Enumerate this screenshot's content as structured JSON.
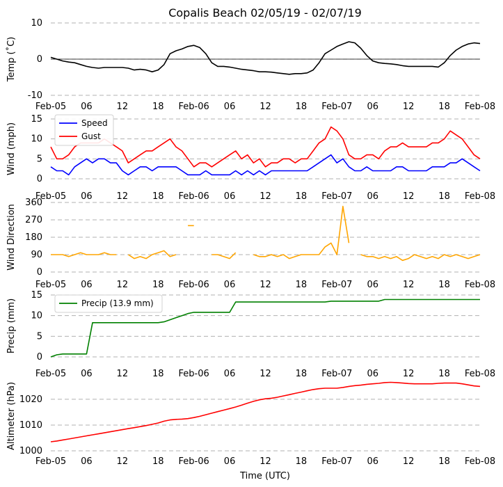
{
  "figure": {
    "title": "Copalis Beach 02/05/19 - 02/07/19",
    "xlabel": "Time (UTC)",
    "xticks": [
      "Feb-05",
      "06",
      "12",
      "18",
      "Feb-06",
      "06",
      "12",
      "18",
      "Feb-07",
      "06",
      "12",
      "18",
      "Feb-08"
    ]
  },
  "chart_data": [
    {
      "type": "line",
      "ylabel": "Temp ($^\\circ$C)",
      "ylabel_text": "Temp (˚C)",
      "ylim": [
        -10,
        10
      ],
      "yticks": [
        -10,
        0,
        10
      ],
      "grid": "horizontal dashed",
      "zero_line": true,
      "x_hours": [
        0,
        1,
        2,
        3,
        4,
        5,
        6,
        7,
        8,
        9,
        10,
        11,
        12,
        13,
        14,
        15,
        16,
        17,
        18,
        19,
        20,
        21,
        22,
        23,
        24,
        25,
        26,
        27,
        28,
        29,
        30,
        31,
        32,
        33,
        34,
        35,
        36,
        37,
        38,
        39,
        40,
        41,
        42,
        43,
        44,
        45,
        46,
        47,
        48,
        49,
        50,
        51,
        52,
        53,
        54,
        55,
        56,
        57,
        58,
        59,
        60,
        61,
        62,
        63,
        64,
        65,
        66,
        67,
        68,
        69,
        70,
        71,
        72
      ],
      "series": [
        {
          "name": "",
          "color": "#000000",
          "values": [
            0.5,
            0.0,
            -0.5,
            -0.8,
            -1.0,
            -1.5,
            -2.0,
            -2.3,
            -2.5,
            -2.3,
            -2.3,
            -2.3,
            -2.3,
            -2.5,
            -3.0,
            -2.8,
            -3.0,
            -3.5,
            -3.0,
            -1.5,
            1.5,
            2.3,
            2.8,
            3.5,
            3.8,
            3.2,
            1.5,
            -1.0,
            -2.0,
            -2.0,
            -2.2,
            -2.5,
            -2.8,
            -3.0,
            -3.2,
            -3.5,
            -3.5,
            -3.6,
            -3.8,
            -4.0,
            -4.2,
            -4.0,
            -4.0,
            -3.8,
            -3.0,
            -1.0,
            1.5,
            2.5,
            3.5,
            4.2,
            4.8,
            4.5,
            3.0,
            1.0,
            -0.5,
            -1.0,
            -1.2,
            -1.3,
            -1.5,
            -1.8,
            -2.0,
            -2.0,
            -2.0,
            -2.0,
            -2.0,
            -2.2,
            -1.0,
            1.0,
            2.5,
            3.5,
            4.2,
            4.5,
            4.3
          ]
        }
      ]
    },
    {
      "type": "line",
      "ylabel": "Wind (mph)",
      "ylim": [
        0,
        15
      ],
      "yticks": [
        0,
        5,
        10,
        15
      ],
      "grid": "horizontal dashed",
      "legend": "top-left",
      "x_hours": [
        0,
        1,
        2,
        3,
        4,
        5,
        6,
        7,
        8,
        9,
        10,
        11,
        12,
        13,
        14,
        15,
        16,
        17,
        18,
        19,
        20,
        21,
        22,
        23,
        24,
        25,
        26,
        27,
        28,
        29,
        30,
        31,
        32,
        33,
        34,
        35,
        36,
        37,
        38,
        39,
        40,
        41,
        42,
        43,
        44,
        45,
        46,
        47,
        48,
        49,
        50,
        51,
        52,
        53,
        54,
        55,
        56,
        57,
        58,
        59,
        60,
        61,
        62,
        63,
        64,
        65,
        66,
        67,
        68,
        69,
        70,
        71,
        72
      ],
      "series": [
        {
          "name": "Speed",
          "color": "#0000ff",
          "values": [
            3,
            2,
            2,
            1,
            3,
            4,
            5,
            4,
            5,
            5,
            4,
            4,
            2,
            1,
            2,
            3,
            3,
            2,
            3,
            3,
            3,
            3,
            2,
            1,
            1,
            1,
            2,
            1,
            1,
            1,
            1,
            2,
            1,
            2,
            1,
            2,
            1,
            2,
            2,
            2,
            2,
            2,
            2,
            2,
            3,
            4,
            5,
            6,
            4,
            5,
            3,
            2,
            2,
            3,
            2,
            2,
            2,
            2,
            3,
            3,
            2,
            2,
            2,
            2,
            3,
            3,
            3,
            4,
            4,
            5,
            4,
            3,
            2
          ]
        },
        {
          "name": "Gust",
          "color": "#ff0000",
          "values": [
            8,
            5,
            5,
            6,
            8,
            9,
            9,
            9,
            9,
            10,
            9,
            8,
            7,
            4,
            5,
            6,
            7,
            7,
            8,
            9,
            10,
            8,
            7,
            5,
            3,
            4,
            4,
            3,
            4,
            5,
            6,
            7,
            5,
            6,
            4,
            5,
            3,
            4,
            4,
            5,
            5,
            4,
            5,
            5,
            7,
            9,
            10,
            13,
            12,
            10,
            6,
            5,
            5,
            6,
            6,
            5,
            7,
            8,
            8,
            9,
            8,
            8,
            8,
            8,
            9,
            9,
            10,
            12,
            11,
            10,
            8,
            6,
            5
          ]
        }
      ]
    },
    {
      "type": "line",
      "ylabel": "Wind Direction",
      "ylim": [
        0,
        360
      ],
      "yticks": [
        0,
        90,
        180,
        270,
        360
      ],
      "grid": "horizontal dashed",
      "x_hours": [
        0,
        1,
        2,
        3,
        4,
        5,
        6,
        7,
        8,
        9,
        10,
        11,
        12,
        13,
        14,
        15,
        16,
        17,
        18,
        19,
        20,
        21,
        22,
        23,
        24,
        25,
        26,
        27,
        28,
        29,
        30,
        31,
        32,
        33,
        34,
        35,
        36,
        37,
        38,
        39,
        40,
        41,
        42,
        43,
        44,
        45,
        46,
        47,
        48,
        49,
        50,
        51,
        52,
        53,
        54,
        55,
        56,
        57,
        58,
        59,
        60,
        61,
        62,
        63,
        64,
        65,
        66,
        67,
        68,
        69,
        70,
        71,
        72
      ],
      "series": [
        {
          "name": "",
          "color": "#ffa500",
          "values": [
            90,
            90,
            90,
            80,
            90,
            100,
            90,
            90,
            90,
            100,
            90,
            90,
            null,
            90,
            70,
            80,
            70,
            90,
            100,
            110,
            80,
            90,
            null,
            240,
            240,
            null,
            null,
            90,
            90,
            80,
            70,
            100,
            null,
            null,
            90,
            80,
            80,
            90,
            80,
            90,
            70,
            80,
            90,
            90,
            90,
            90,
            130,
            150,
            90,
            340,
            150,
            null,
            90,
            80,
            80,
            70,
            80,
            70,
            80,
            60,
            70,
            90,
            80,
            70,
            80,
            70,
            90,
            80,
            90,
            80,
            70,
            80,
            90
          ]
        }
      ]
    },
    {
      "type": "line",
      "ylabel": "Precip (mm)",
      "ylim": [
        0,
        15
      ],
      "yticks": [
        0,
        5,
        10,
        15
      ],
      "grid": "horizontal dashed",
      "legend": "top-left",
      "x_hours": [
        0,
        1,
        2,
        3,
        4,
        5,
        6,
        7,
        8,
        9,
        10,
        11,
        12,
        13,
        14,
        15,
        16,
        17,
        18,
        19,
        20,
        21,
        22,
        23,
        24,
        25,
        26,
        27,
        28,
        29,
        30,
        31,
        32,
        33,
        34,
        35,
        36,
        37,
        38,
        39,
        40,
        41,
        42,
        43,
        44,
        45,
        46,
        47,
        48,
        49,
        50,
        51,
        52,
        53,
        54,
        55,
        56,
        57,
        58,
        59,
        60,
        61,
        62,
        63,
        64,
        65,
        66,
        67,
        68,
        69,
        70,
        71,
        72
      ],
      "series": [
        {
          "name": "Precip (13.9 mm)",
          "color": "#008000",
          "values": [
            0.0,
            0.5,
            0.7,
            0.7,
            0.7,
            0.7,
            0.7,
            8.3,
            8.3,
            8.3,
            8.3,
            8.3,
            8.3,
            8.3,
            8.3,
            8.3,
            8.3,
            8.3,
            8.3,
            8.5,
            9.0,
            9.5,
            10.0,
            10.5,
            10.8,
            10.8,
            10.8,
            10.8,
            10.8,
            10.8,
            10.8,
            13.3,
            13.3,
            13.3,
            13.3,
            13.3,
            13.3,
            13.3,
            13.3,
            13.3,
            13.3,
            13.3,
            13.3,
            13.3,
            13.3,
            13.3,
            13.3,
            13.5,
            13.5,
            13.5,
            13.5,
            13.5,
            13.5,
            13.5,
            13.5,
            13.5,
            13.9,
            13.9,
            13.9,
            13.9,
            13.9,
            13.9,
            13.9,
            13.9,
            13.9,
            13.9,
            13.9,
            13.9,
            13.9,
            13.9,
            13.9,
            13.9,
            13.9
          ]
        }
      ]
    },
    {
      "type": "line",
      "ylabel": "Altimeter (hPa)",
      "ylim": [
        1000,
        1027
      ],
      "yticks": [
        1000,
        1010,
        1020
      ],
      "grid": "horizontal dashed",
      "x_hours": [
        0,
        1,
        2,
        3,
        4,
        5,
        6,
        7,
        8,
        9,
        10,
        11,
        12,
        13,
        14,
        15,
        16,
        17,
        18,
        19,
        20,
        21,
        22,
        23,
        24,
        25,
        26,
        27,
        28,
        29,
        30,
        31,
        32,
        33,
        34,
        35,
        36,
        37,
        38,
        39,
        40,
        41,
        42,
        43,
        44,
        45,
        46,
        47,
        48,
        49,
        50,
        51,
        52,
        53,
        54,
        55,
        56,
        57,
        58,
        59,
        60,
        61,
        62,
        63,
        64,
        65,
        66,
        67,
        68,
        69,
        70,
        71,
        72
      ],
      "series": [
        {
          "name": "",
          "color": "#ff0000",
          "values": [
            1003.5,
            1003.8,
            1004.2,
            1004.6,
            1005.0,
            1005.4,
            1005.8,
            1006.2,
            1006.6,
            1007.0,
            1007.4,
            1007.8,
            1008.2,
            1008.6,
            1009.0,
            1009.4,
            1009.8,
            1010.3,
            1010.8,
            1011.5,
            1012.0,
            1012.2,
            1012.3,
            1012.5,
            1012.9,
            1013.4,
            1014.0,
            1014.6,
            1015.2,
            1015.8,
            1016.4,
            1017.0,
            1017.7,
            1018.5,
            1019.2,
            1019.8,
            1020.2,
            1020.4,
            1020.8,
            1021.3,
            1021.8,
            1022.3,
            1022.8,
            1023.3,
            1023.8,
            1024.1,
            1024.3,
            1024.3,
            1024.3,
            1024.6,
            1025.0,
            1025.3,
            1025.5,
            1025.8,
            1026.0,
            1026.2,
            1026.5,
            1026.6,
            1026.5,
            1026.3,
            1026.1,
            1026.0,
            1026.0,
            1026.0,
            1026.0,
            1026.2,
            1026.3,
            1026.3,
            1026.3,
            1026.0,
            1025.6,
            1025.2,
            1025.0
          ]
        }
      ]
    }
  ]
}
